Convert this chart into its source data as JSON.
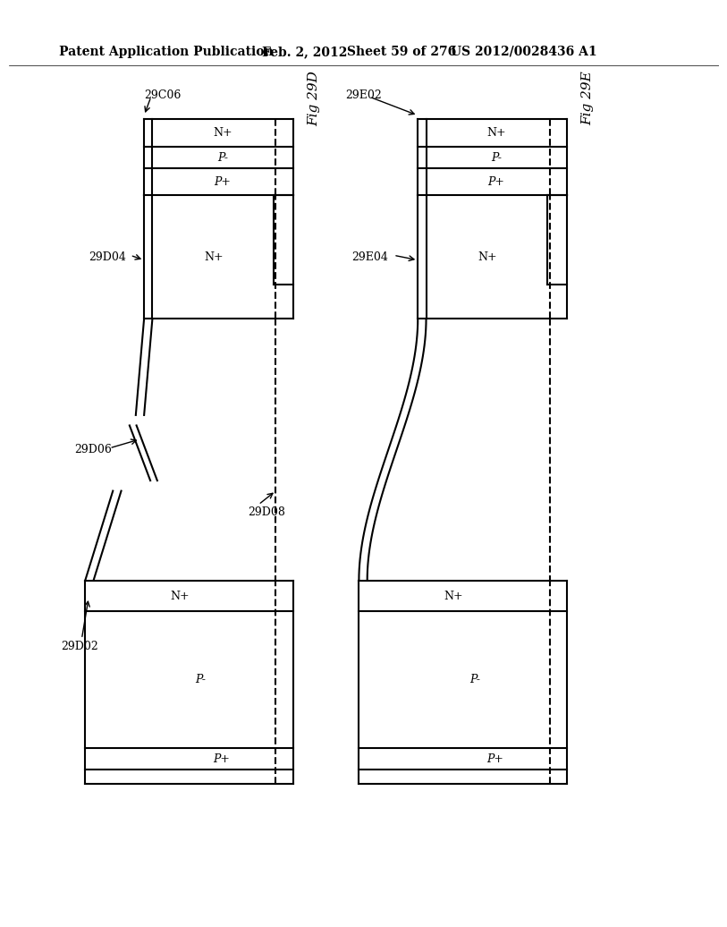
{
  "fig_title_left": "Fig 29D",
  "fig_title_right": "Fig 29E",
  "header_text": "Patent Application Publication",
  "header_date": "Feb. 2, 2012",
  "header_sheet": "Sheet 59 of 276",
  "header_patent": "US 2012/0028436 A1",
  "background_color": "#ffffff",
  "line_color": "#000000"
}
